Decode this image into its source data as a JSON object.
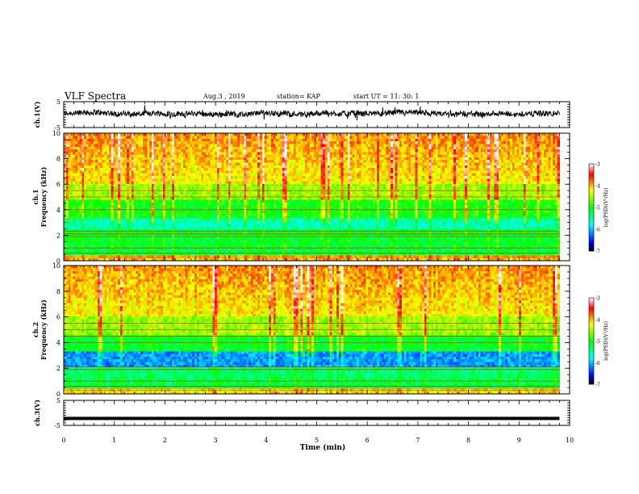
{
  "header": {
    "title": "VLF Spectra",
    "date": "Aug.3  , 2019",
    "station": "station= KAP",
    "start": "start  UT =   11: 30: 1"
  },
  "chart_data": [
    {
      "type": "line",
      "panel": "ch1-waveform",
      "ylabel": "ch.1(V)",
      "ylim": [
        -5,
        5
      ],
      "yticks": [
        "5",
        "-5"
      ],
      "xlim": [
        0,
        10
      ],
      "baseline_value": 0.3,
      "noise_amplitude": 1.1
    },
    {
      "type": "heatmap",
      "panel": "ch1-spectrogram",
      "ylabel": "ch.1\nFrequency  (kHz)",
      "ylim": [
        0,
        10
      ],
      "yticks": [
        "0",
        "2",
        "4",
        "6",
        "8",
        "10"
      ],
      "xlim": [
        0,
        9.8
      ],
      "colorbar": {
        "label": "log(PSD)(V²/Hz)",
        "range": [
          -7,
          -3
        ],
        "ticks": [
          "-3",
          "-4",
          "-5",
          "-6",
          "-7"
        ],
        "colors": [
          "#000000",
          "#0000ff",
          "#00ffff",
          "#00ff00",
          "#ffff00",
          "#ff0000",
          "#ffffff"
        ]
      },
      "horizontal_lines_khz": [
        0.3,
        0.6,
        1.0,
        1.9,
        2.1,
        2.3,
        4.0,
        5.0,
        5.5
      ]
    },
    {
      "type": "heatmap",
      "panel": "ch2-spectrogram",
      "ylabel": "ch.2\nFrequency  (kHz)",
      "ylim": [
        0,
        10
      ],
      "yticks": [
        "0",
        "2",
        "4",
        "6",
        "8",
        "10"
      ],
      "xlim": [
        0,
        9.8
      ],
      "colorbar": {
        "label": "log(PSD)(V²/Hz)",
        "range": [
          -7,
          -3
        ],
        "ticks": [
          "-3",
          "-4",
          "-5",
          "-6",
          "-7"
        ],
        "colors": [
          "#000000",
          "#0000ff",
          "#00ffff",
          "#00ff00",
          "#ffff00",
          "#ff0000",
          "#ffffff"
        ]
      },
      "horizontal_lines_khz": [
        0.3,
        0.6,
        1.0,
        1.9,
        2.1,
        4.0,
        4.5,
        5.0,
        5.5
      ]
    },
    {
      "type": "line",
      "panel": "ch3-waveform",
      "ylabel": "ch.3(V)",
      "ylim": [
        -5,
        5
      ],
      "yticks": [
        "5",
        "-5"
      ],
      "xlim": [
        0,
        10
      ],
      "constant_value": -2.2
    }
  ],
  "xaxis": {
    "label": "Time  (min)",
    "ticks": [
      "0",
      "1",
      "2",
      "3",
      "4",
      "5",
      "6",
      "7",
      "8",
      "9",
      "10"
    ],
    "range": [
      0,
      10
    ]
  }
}
